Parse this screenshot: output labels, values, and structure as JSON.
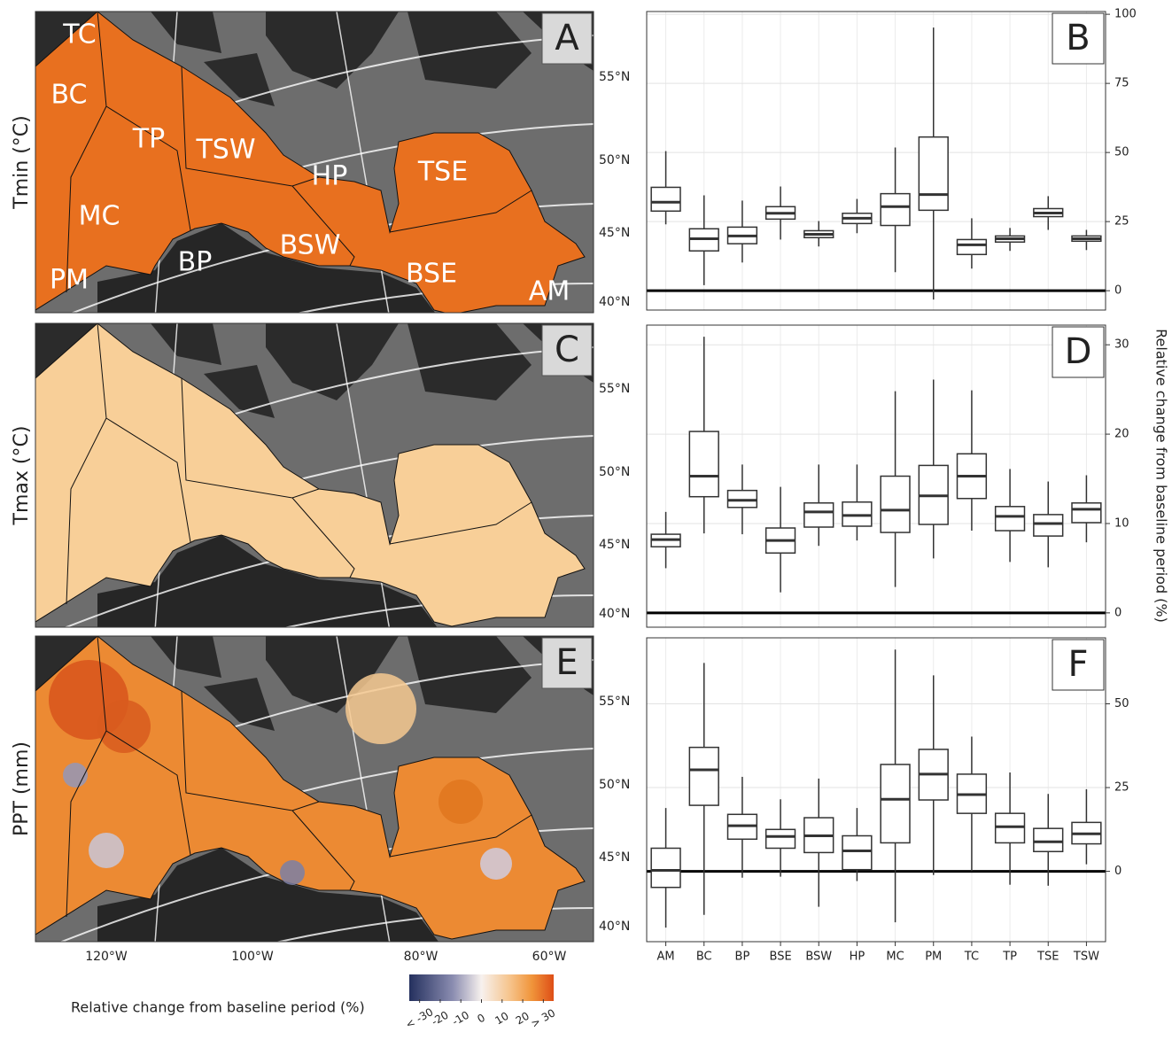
{
  "chart_data": [
    {
      "type": "box",
      "panel_label": "B",
      "ylim": [
        -7,
        101
      ],
      "yticks": [
        0,
        25,
        50,
        75,
        100
      ],
      "grid": true,
      "hline": 0,
      "whisker_low": [
        24,
        2,
        10.2,
        18.5,
        16,
        20.8,
        6.7,
        -3.2,
        8,
        14.4,
        22,
        14.7
      ],
      "q1": [
        28.8,
        14.4,
        17,
        25.9,
        19.2,
        24.3,
        23.6,
        29.1,
        13.1,
        17.6,
        26.8,
        17.9
      ],
      "median": [
        32,
        18.8,
        19.8,
        28,
        20.4,
        26.2,
        30.4,
        34.8,
        16.6,
        18.8,
        28.1,
        18.8
      ],
      "q3": [
        37.4,
        22.4,
        23,
        30.4,
        21.7,
        28,
        35.1,
        55.6,
        18.5,
        19.8,
        29.7,
        19.8
      ],
      "whisker_high": [
        50.5,
        34.5,
        32.6,
        37.7,
        25.2,
        33.2,
        51.8,
        95.2,
        26.2,
        22.7,
        34.2,
        22
      ]
    },
    {
      "type": "box",
      "panel_label": "D",
      "ylim": [
        -1.6,
        32.2
      ],
      "yticks": [
        0,
        10,
        20,
        30
      ],
      "grid": true,
      "hline": 0,
      "whisker_low": [
        5,
        8.9,
        8.8,
        2.3,
        7.5,
        8.1,
        2.9,
        6.1,
        9.2,
        5.7,
        5.1,
        7.9
      ],
      "q1": [
        7.4,
        13,
        11.8,
        6.7,
        9.6,
        9.7,
        9,
        9.9,
        12.8,
        9.2,
        8.6,
        10.1
      ],
      "median": [
        8.2,
        15.3,
        12.6,
        8.1,
        11.3,
        10.9,
        11.5,
        13.1,
        15.3,
        10.8,
        10,
        11.6
      ],
      "q3": [
        8.8,
        20.3,
        13.7,
        9.5,
        12.3,
        12.4,
        15.3,
        16.5,
        17.8,
        11.9,
        11,
        12.3
      ],
      "whisker_high": [
        11.3,
        30.9,
        16.6,
        14.1,
        16.6,
        16.6,
        24.8,
        26.1,
        24.9,
        16.1,
        14.7,
        15.4
      ]
    },
    {
      "type": "box",
      "panel_label": "F",
      "ylim": [
        -21,
        69.7
      ],
      "yticks": [
        0,
        25,
        50
      ],
      "grid": true,
      "hline": 0,
      "categories": [
        "AM",
        "BC",
        "BP",
        "BSE",
        "BSW",
        "HP",
        "MC",
        "PM",
        "TC",
        "TP",
        "TSE",
        "TSW"
      ],
      "whisker_low": [
        -16.8,
        -13,
        -1.9,
        -1.6,
        -10.6,
        -2.9,
        -15.2,
        -1.1,
        0,
        -4,
        -4.3,
        2.1
      ],
      "q1": [
        -4.8,
        19.7,
        9.6,
        6.9,
        5.6,
        0.5,
        8.5,
        21.3,
        17.3,
        8.5,
        5.9,
        8.2
      ],
      "median": [
        0.3,
        30.3,
        13.6,
        10.4,
        10.6,
        6.1,
        21.5,
        29,
        22.9,
        13.3,
        8.8,
        11.2
      ],
      "q3": [
        6.9,
        37,
        17,
        12.5,
        16,
        10.6,
        31.9,
        36.4,
        29,
        17.3,
        12.8,
        14.6
      ],
      "whisker_high": [
        18.9,
        62.2,
        28.2,
        21.5,
        27.7,
        18.9,
        66.2,
        58.5,
        40.2,
        29.5,
        23.1,
        24.5
      ]
    }
  ],
  "value_axis_label": "Relative change from baseline period (%)",
  "maps": [
    {
      "panel_label": "A",
      "y_label": "Tmin (°C)",
      "lat_labels": [
        "55°N",
        "50°N",
        "45°N",
        "40°N"
      ],
      "regions": [
        "TC",
        "BC",
        "TP",
        "TSW",
        "HP",
        "TSE",
        "MC",
        "BP",
        "BSW",
        "BSE",
        "PM",
        "AM"
      ]
    },
    {
      "panel_label": "C",
      "y_label": "Tmax (°C)",
      "lat_labels": [
        "55°N",
        "50°N",
        "45°N",
        "40°N"
      ]
    },
    {
      "panel_label": "E",
      "y_label": "PPT (mm)",
      "lat_labels": [
        "55°N",
        "50°N",
        "45°N",
        "40°N"
      ]
    }
  ],
  "lon_labels": [
    "120°W",
    "100°W",
    "80°W",
    "60°W"
  ],
  "colorbar": {
    "label": "Relative change from baseline period (%)",
    "lim": [
      -35,
      35
    ],
    "ticks": [
      {
        "value": -30,
        "label": "< -30"
      },
      -20,
      -10,
      0,
      10,
      20,
      {
        "value": 30,
        "label": "> 30"
      }
    ]
  }
}
